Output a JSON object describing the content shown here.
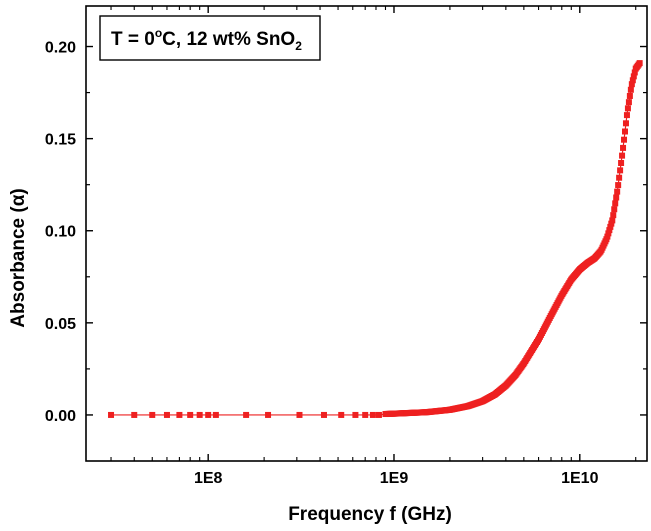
{
  "chart_data": {
    "type": "scatter",
    "title": "",
    "xlabel": "Frequency f (GHz)",
    "ylabel": "Absorbance (α)",
    "xscale": "log",
    "xlim": [
      22000000.0,
      23000000000.0
    ],
    "ylim": [
      -0.025,
      0.222
    ],
    "x_tick_labels": [
      "1E8",
      "1E9",
      "1E10"
    ],
    "x_tick_values": [
      100000000.0,
      1000000000.0,
      10000000000.0
    ],
    "y_tick_labels": [
      "0.00",
      "0.05",
      "0.10",
      "0.15",
      "0.20"
    ],
    "y_tick_values": [
      0.0,
      0.05,
      0.1,
      0.15,
      0.2
    ],
    "legend": {
      "placement": "top-left",
      "text_main": "T = 0",
      "text_deg": "o",
      "text_mid": "C, 12 wt% SnO",
      "text_sub": "2"
    },
    "series": [
      {
        "name": "T = 0°C, 12 wt% SnO2",
        "color": "#ee2020",
        "marker": "square",
        "sparse_points": [
          {
            "x": 30000000.0,
            "y": 0.0
          },
          {
            "x": 40000000.0,
            "y": 0.0
          },
          {
            "x": 50000000.0,
            "y": 0.0
          },
          {
            "x": 60000000.0,
            "y": 0.0
          },
          {
            "x": 70000000.0,
            "y": 0.0
          },
          {
            "x": 80000000.0,
            "y": 0.0
          },
          {
            "x": 90000000.0,
            "y": 0.0
          },
          {
            "x": 100000000.0,
            "y": 0.0
          },
          {
            "x": 110000000.0,
            "y": 0.0
          },
          {
            "x": 160000000.0,
            "y": 0.0
          },
          {
            "x": 210000000.0,
            "y": 0.0
          },
          {
            "x": 310000000.0,
            "y": 0.0
          },
          {
            "x": 420000000.0,
            "y": 0.0
          },
          {
            "x": 520000000.0,
            "y": 0.0
          },
          {
            "x": 620000000.0,
            "y": 0.0
          },
          {
            "x": 700000000.0,
            "y": 0.0
          },
          {
            "x": 770000000.0,
            "y": 0.0
          },
          {
            "x": 830000000.0,
            "y": 0.0
          }
        ],
        "dense_curve": [
          [
            900000000.0,
            0.0005
          ],
          [
            1000000000.0,
            0.0007
          ],
          [
            1500000000.0,
            0.0015
          ],
          [
            2000000000.0,
            0.0028
          ],
          [
            2500000000.0,
            0.0048
          ],
          [
            3000000000.0,
            0.0075
          ],
          [
            3500000000.0,
            0.0112
          ],
          [
            4000000000.0,
            0.016
          ],
          [
            4500000000.0,
            0.0216
          ],
          [
            5000000000.0,
            0.028
          ],
          [
            6000000000.0,
            0.041
          ],
          [
            7000000000.0,
            0.054
          ],
          [
            8000000000.0,
            0.065
          ],
          [
            9000000000.0,
            0.0735
          ],
          [
            10000000000.0,
            0.079
          ],
          [
            11000000000.0,
            0.0825
          ],
          [
            12000000000.0,
            0.085
          ],
          [
            13000000000.0,
            0.089
          ],
          [
            14000000000.0,
            0.096
          ],
          [
            15000000000.0,
            0.106
          ],
          [
            16000000000.0,
            0.123
          ],
          [
            17000000000.0,
            0.143
          ],
          [
            18000000000.0,
            0.164
          ],
          [
            19000000000.0,
            0.179
          ],
          [
            20000000000.0,
            0.188
          ],
          [
            21000000000.0,
            0.191
          ]
        ]
      }
    ]
  }
}
